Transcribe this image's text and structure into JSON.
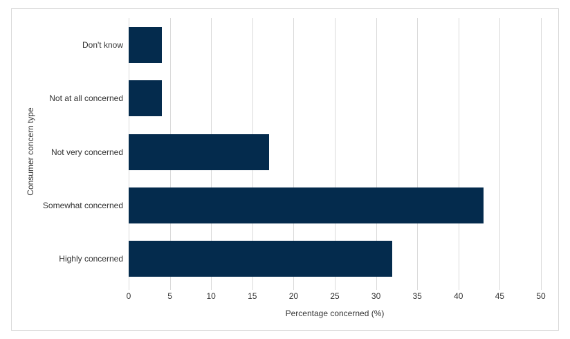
{
  "chart_data": {
    "type": "bar",
    "orientation": "horizontal",
    "categories": [
      "Don't know",
      "Not at all concerned",
      "Not very concerned",
      "Somewhat concerned",
      "Highly concerned"
    ],
    "values": [
      4,
      4,
      17,
      43,
      32
    ],
    "title": "",
    "xlabel": "Percentage concerned (%)",
    "ylabel": "Consumer concern type",
    "xlim": [
      0,
      50
    ],
    "xticks": [
      0,
      5,
      10,
      15,
      20,
      25,
      30,
      35,
      40,
      45,
      50
    ],
    "grid": true,
    "legend": "none",
    "bar_color": "#042b4d",
    "gridline_color": "#d9d9d9",
    "border_color": "#d9d9d9",
    "text_color": "#333333",
    "background_color": "#ffffff"
  }
}
